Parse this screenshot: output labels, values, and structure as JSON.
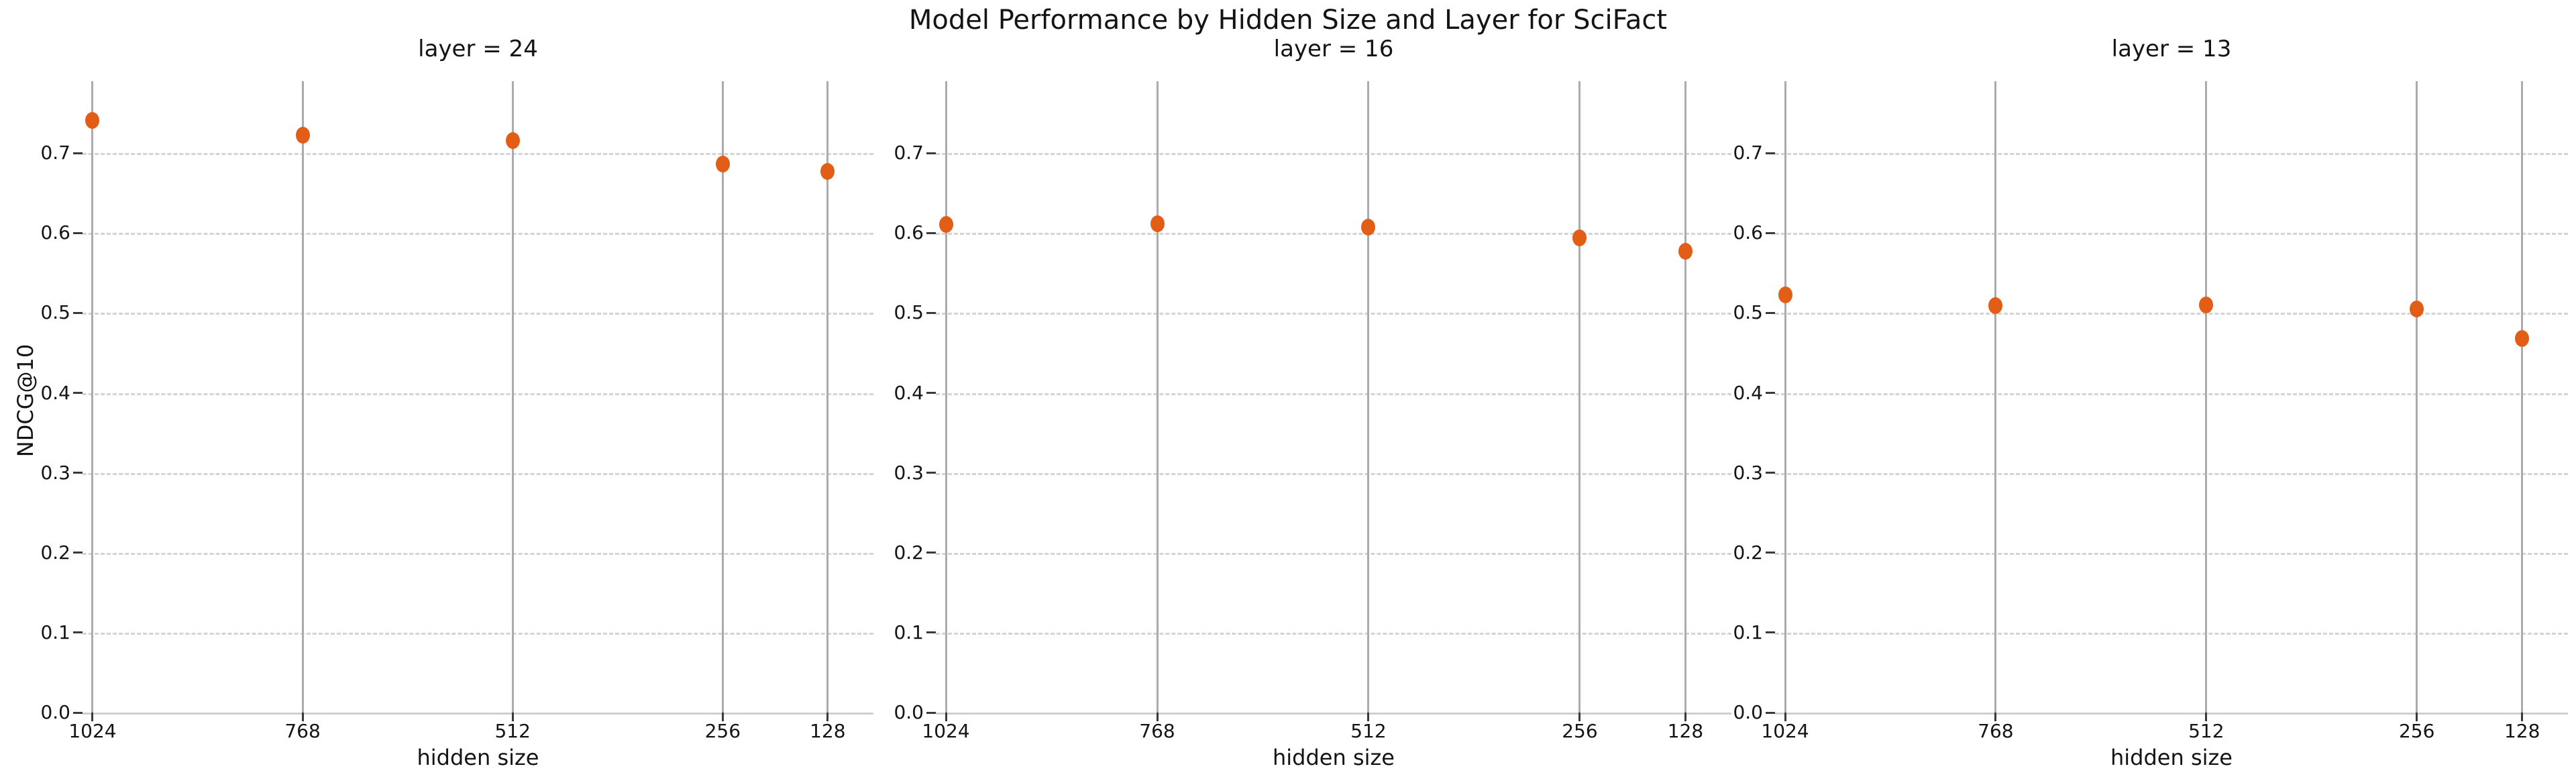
{
  "title": "Model Performance by Hidden Size and Layer for SciFact",
  "chart_data": {
    "type": "scatter",
    "title": "Model Performance by Hidden Size and Layer for SciFact",
    "xlabel": "hidden size",
    "ylabel": "NDCG@10",
    "facet_variable": "layer",
    "categories": [
      1024,
      768,
      512,
      256,
      128
    ],
    "x_tick_labels": [
      "1024",
      "768",
      "512",
      "256",
      "128"
    ],
    "y_tick_labels": [
      "0.0",
      "0.1",
      "0.2",
      "0.3",
      "0.4",
      "0.5",
      "0.6",
      "0.7"
    ],
    "y_ticks": [
      0.0,
      0.1,
      0.2,
      0.3,
      0.4,
      0.5,
      0.6,
      0.7
    ],
    "ylim": [
      0.0,
      0.79
    ],
    "x_axis_inverted": true,
    "grid": {
      "vertical": "solid",
      "horizontal": "dashed"
    },
    "legend_position": "none",
    "series": [
      {
        "name": "layer = 24",
        "layer": 24,
        "values": [
          0.741,
          0.722,
          0.716,
          0.686,
          0.677
        ]
      },
      {
        "name": "layer = 16",
        "layer": 16,
        "values": [
          0.611,
          0.612,
          0.607,
          0.594,
          0.577
        ]
      },
      {
        "name": "layer = 13",
        "layer": 13,
        "values": [
          0.523,
          0.509,
          0.51,
          0.505,
          0.468
        ]
      }
    ],
    "colors": {
      "point": "#e25d15",
      "grid_vertical": "#ababab",
      "grid_horizontal": "#d4d4d4",
      "axis_line": "#d0d0d0",
      "tick": "#3a3a3a",
      "text": "#141414"
    }
  }
}
